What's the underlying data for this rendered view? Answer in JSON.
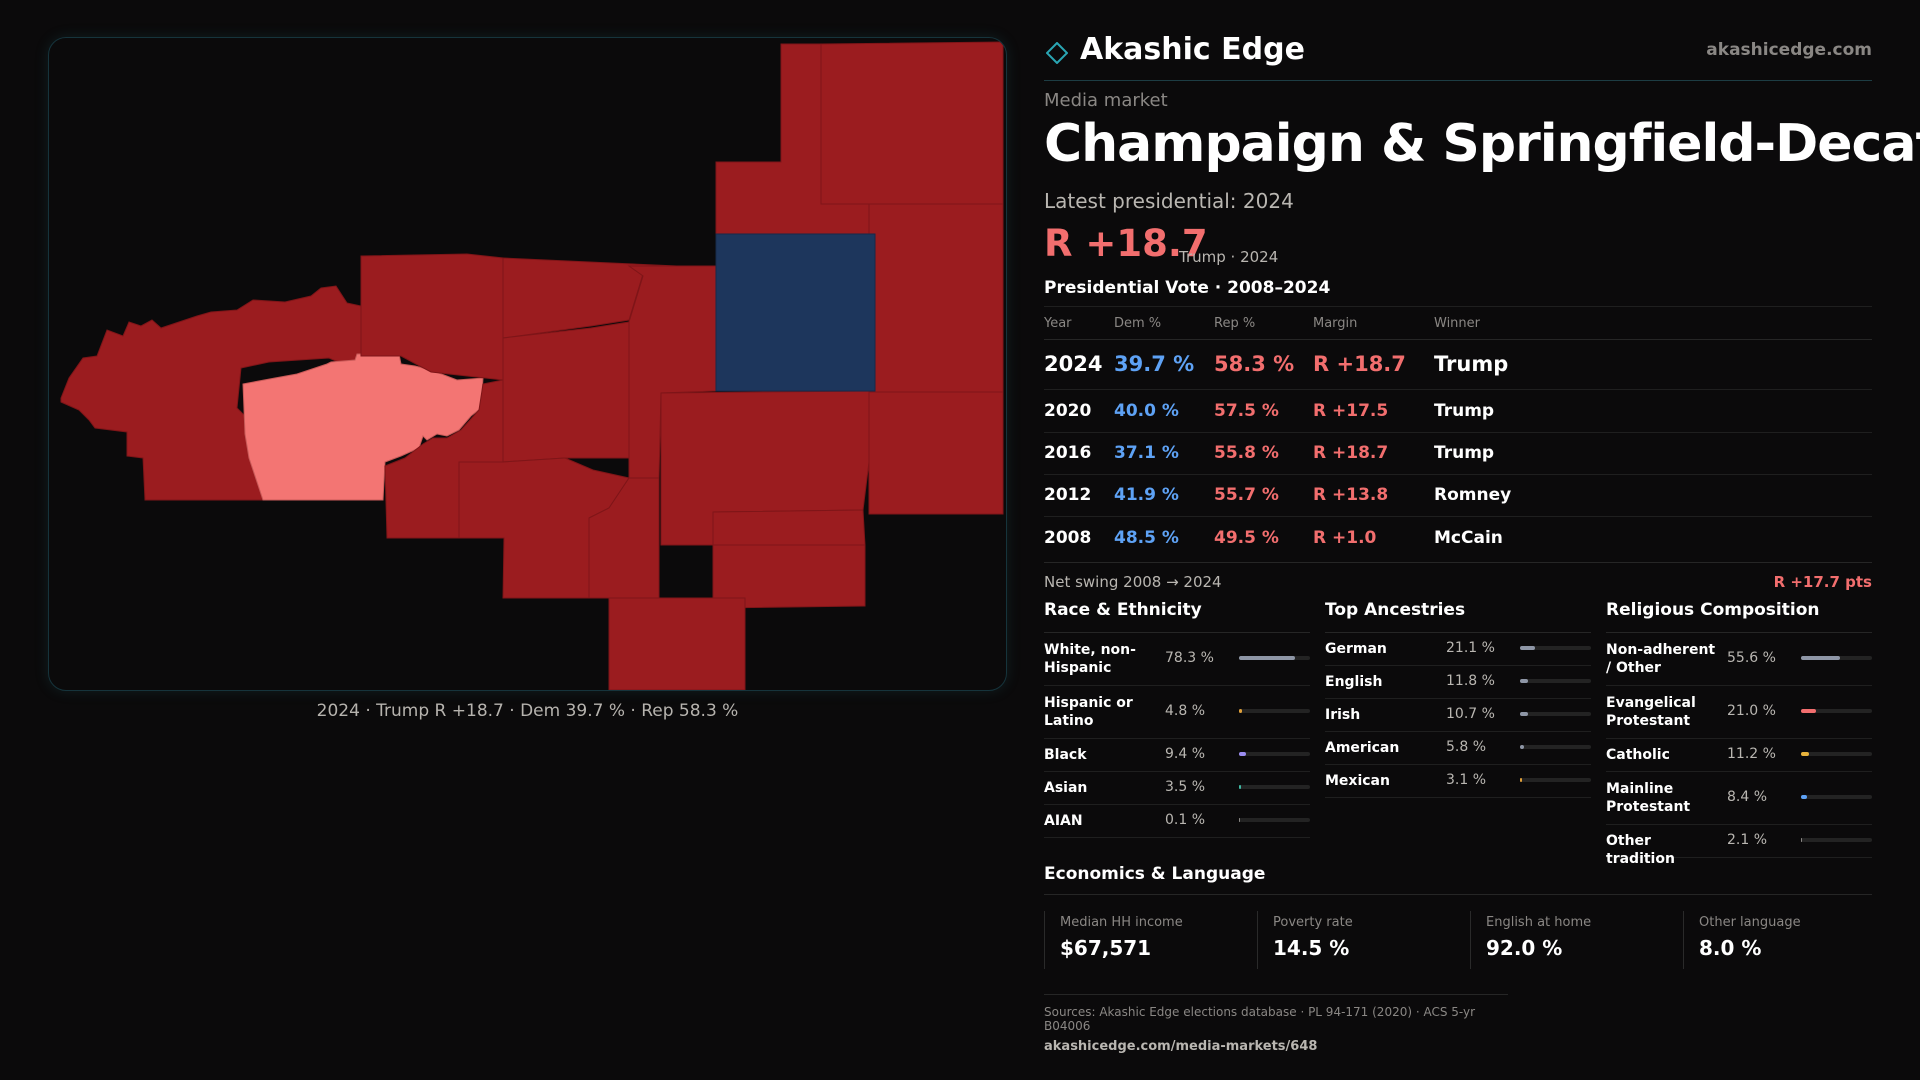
{
  "map": {
    "caption": "2024 · Trump R +18.7 · Dem 39.7 % · Rep 58.3 %",
    "colors": {
      "strong_rep": "#9b1c1f",
      "lean_rep": "#f37573",
      "dem": "#1d365c",
      "border": "#16343c"
    }
  },
  "header": {
    "brand_name": "Akashic Edge",
    "brand_url": "akashicedge.com",
    "kicker": "Media market",
    "title": "Champaign & Springfield-Decatur",
    "latest_label": "Latest presidential: 2024",
    "margin": "R +18.7",
    "margin_sub": "Trump · 2024"
  },
  "vote_table": {
    "title": "Presidential Vote · 2008–2024",
    "columns": [
      "Year",
      "Dem %",
      "Rep %",
      "Margin",
      "Winner"
    ],
    "rows": [
      {
        "year": "2024",
        "dem": "39.7 %",
        "rep": "58.3 %",
        "margin": "R +18.7",
        "winner": "Trump"
      },
      {
        "year": "2020",
        "dem": "40.0 %",
        "rep": "57.5 %",
        "margin": "R +17.5",
        "winner": "Trump"
      },
      {
        "year": "2016",
        "dem": "37.1 %",
        "rep": "55.8 %",
        "margin": "R +18.7",
        "winner": "Trump"
      },
      {
        "year": "2012",
        "dem": "41.9 %",
        "rep": "55.7 %",
        "margin": "R +13.8",
        "winner": "Romney"
      },
      {
        "year": "2008",
        "dem": "48.5 %",
        "rep": "49.5 %",
        "margin": "R +1.0",
        "winner": "McCain"
      }
    ],
    "swing_label": "Net swing 2008 → 2024",
    "swing_value": "R +17.7 pts"
  },
  "race": {
    "title": "Race & Ethnicity",
    "items": [
      {
        "label": "White, non-Hispanic",
        "value": "78.3 %",
        "pct": 78.3,
        "color": "#8e96a6"
      },
      {
        "label": "Hispanic or Latino",
        "value": "4.8 %",
        "pct": 4.8,
        "color": "#e0a03a"
      },
      {
        "label": "Black",
        "value": "9.4 %",
        "pct": 9.4,
        "color": "#9b8df0"
      },
      {
        "label": "Asian",
        "value": "3.5 %",
        "pct": 3.5,
        "color": "#3fb9a3"
      },
      {
        "label": "AIAN",
        "value": "0.1 %",
        "pct": 0.1,
        "color": "#8a8784"
      }
    ]
  },
  "ancestry": {
    "title": "Top Ancestries",
    "items": [
      {
        "label": "German",
        "value": "21.1 %",
        "pct": 21.1,
        "color": "#8e96a6"
      },
      {
        "label": "English",
        "value": "11.8 %",
        "pct": 11.8,
        "color": "#8e96a6"
      },
      {
        "label": "Irish",
        "value": "10.7 %",
        "pct": 10.7,
        "color": "#8e96a6"
      },
      {
        "label": "American",
        "value": "5.8 %",
        "pct": 5.8,
        "color": "#8e96a6"
      },
      {
        "label": "Mexican",
        "value": "3.1 %",
        "pct": 3.1,
        "color": "#e0a03a"
      }
    ]
  },
  "religion": {
    "title": "Religious Composition",
    "items": [
      {
        "label": "Non-adherent / Other",
        "value": "55.6 %",
        "pct": 55.6,
        "color": "#8e96a6"
      },
      {
        "label": "Evangelical Protestant",
        "value": "21.0 %",
        "pct": 21.0,
        "color": "#f26e6e"
      },
      {
        "label": "Catholic",
        "value": "11.2 %",
        "pct": 11.2,
        "color": "#e8b33c"
      },
      {
        "label": "Mainline Protestant",
        "value": "8.4 %",
        "pct": 8.4,
        "color": "#5ea2f5"
      },
      {
        "label": "Other tradition",
        "value": "2.1 %",
        "pct": 2.1,
        "color": "#8a8784"
      }
    ]
  },
  "economics": {
    "title": "Economics & Language",
    "cells": [
      {
        "label": "Median HH income",
        "value": "$67,571"
      },
      {
        "label": "Poverty rate",
        "value": "14.5 %"
      },
      {
        "label": "English at home",
        "value": "92.0 %"
      },
      {
        "label": "Other language",
        "value": "8.0 %"
      }
    ]
  },
  "footer": {
    "sources": "Sources: Akashic Edge elections database · PL 94-171 (2020) · ACS 5-yr B04006",
    "link": "akashicedge.com/media-markets/648"
  }
}
